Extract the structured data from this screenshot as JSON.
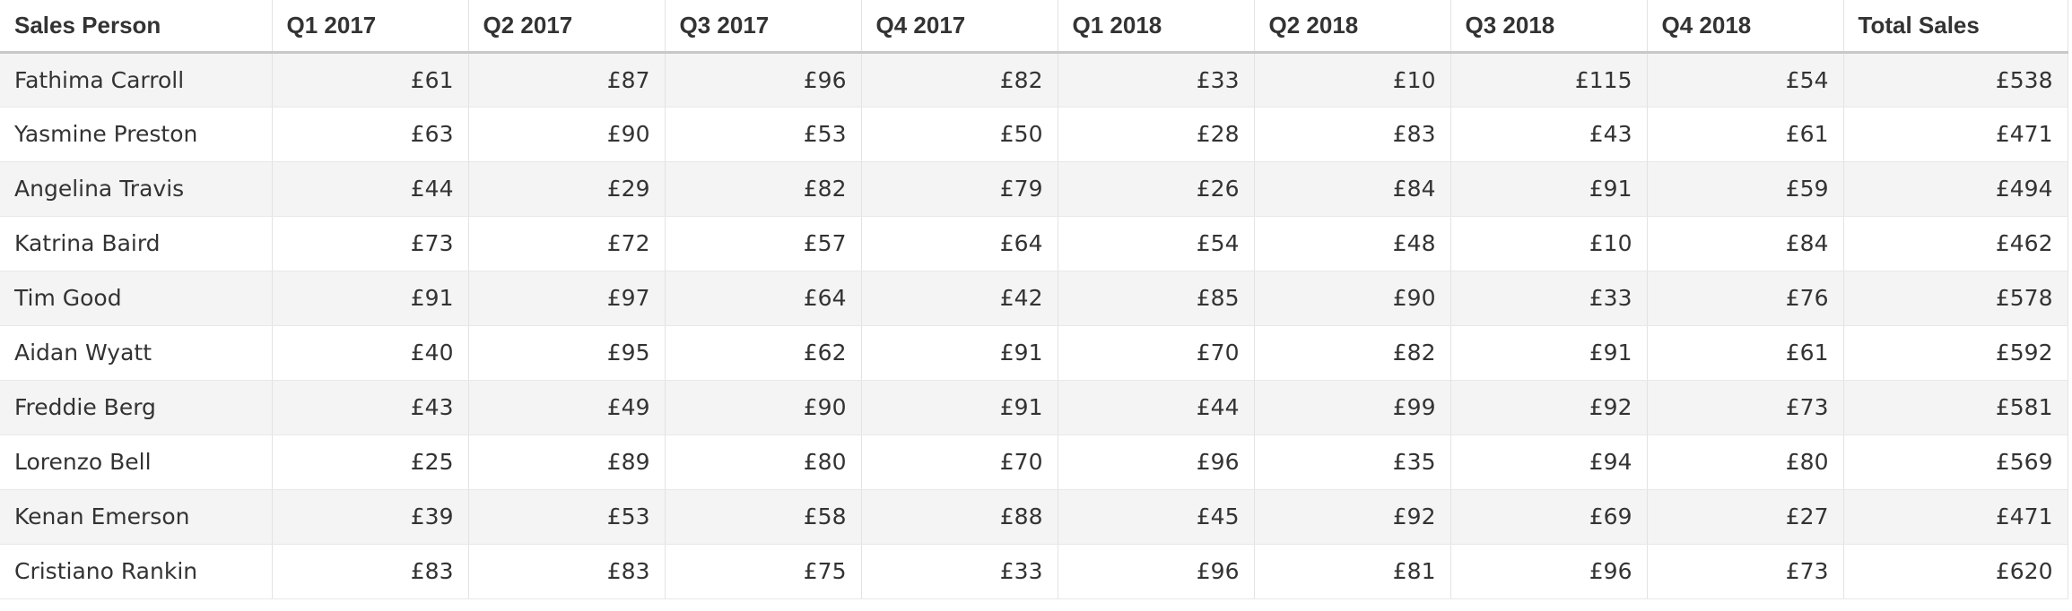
{
  "table": {
    "headers": [
      "Sales Person",
      "Q1 2017",
      "Q2 2017",
      "Q3 2017",
      "Q4 2017",
      "Q1 2018",
      "Q2 2018",
      "Q3 2018",
      "Q4 2018",
      "Total Sales"
    ],
    "rows": [
      [
        "Fathima Carroll",
        "£61",
        "£87",
        "£96",
        "£82",
        "£33",
        "£10",
        "£115",
        "£54",
        "£538"
      ],
      [
        "Yasmine Preston",
        "£63",
        "£90",
        "£53",
        "£50",
        "£28",
        "£83",
        "£43",
        "£61",
        "£471"
      ],
      [
        "Angelina Travis",
        "£44",
        "£29",
        "£82",
        "£79",
        "£26",
        "£84",
        "£91",
        "£59",
        "£494"
      ],
      [
        "Katrina Baird",
        "£73",
        "£72",
        "£57",
        "£64",
        "£54",
        "£48",
        "£10",
        "£84",
        "£462"
      ],
      [
        "Tim Good",
        "£91",
        "£97",
        "£64",
        "£42",
        "£85",
        "£90",
        "£33",
        "£76",
        "£578"
      ],
      [
        "Aidan Wyatt",
        "£40",
        "£95",
        "£62",
        "£91",
        "£70",
        "£82",
        "£91",
        "£61",
        "£592"
      ],
      [
        "Freddie Berg",
        "£43",
        "£49",
        "£90",
        "£91",
        "£44",
        "£99",
        "£92",
        "£73",
        "£581"
      ],
      [
        "Lorenzo Bell",
        "£25",
        "£89",
        "£80",
        "£70",
        "£96",
        "£35",
        "£94",
        "£80",
        "£569"
      ],
      [
        "Kenan Emerson",
        "£39",
        "£53",
        "£58",
        "£88",
        "£45",
        "£92",
        "£69",
        "£27",
        "£471"
      ],
      [
        "Cristiano Rankin",
        "£83",
        "£83",
        "£75",
        "£33",
        "£96",
        "£81",
        "£96",
        "£73",
        "£620"
      ]
    ]
  },
  "colors": {
    "text": "#333333",
    "row_stripe": "#f4f4f4",
    "row_plain": "#ffffff",
    "header_rule": "#c8c8c8",
    "grid_line": "#e3e3e3"
  }
}
